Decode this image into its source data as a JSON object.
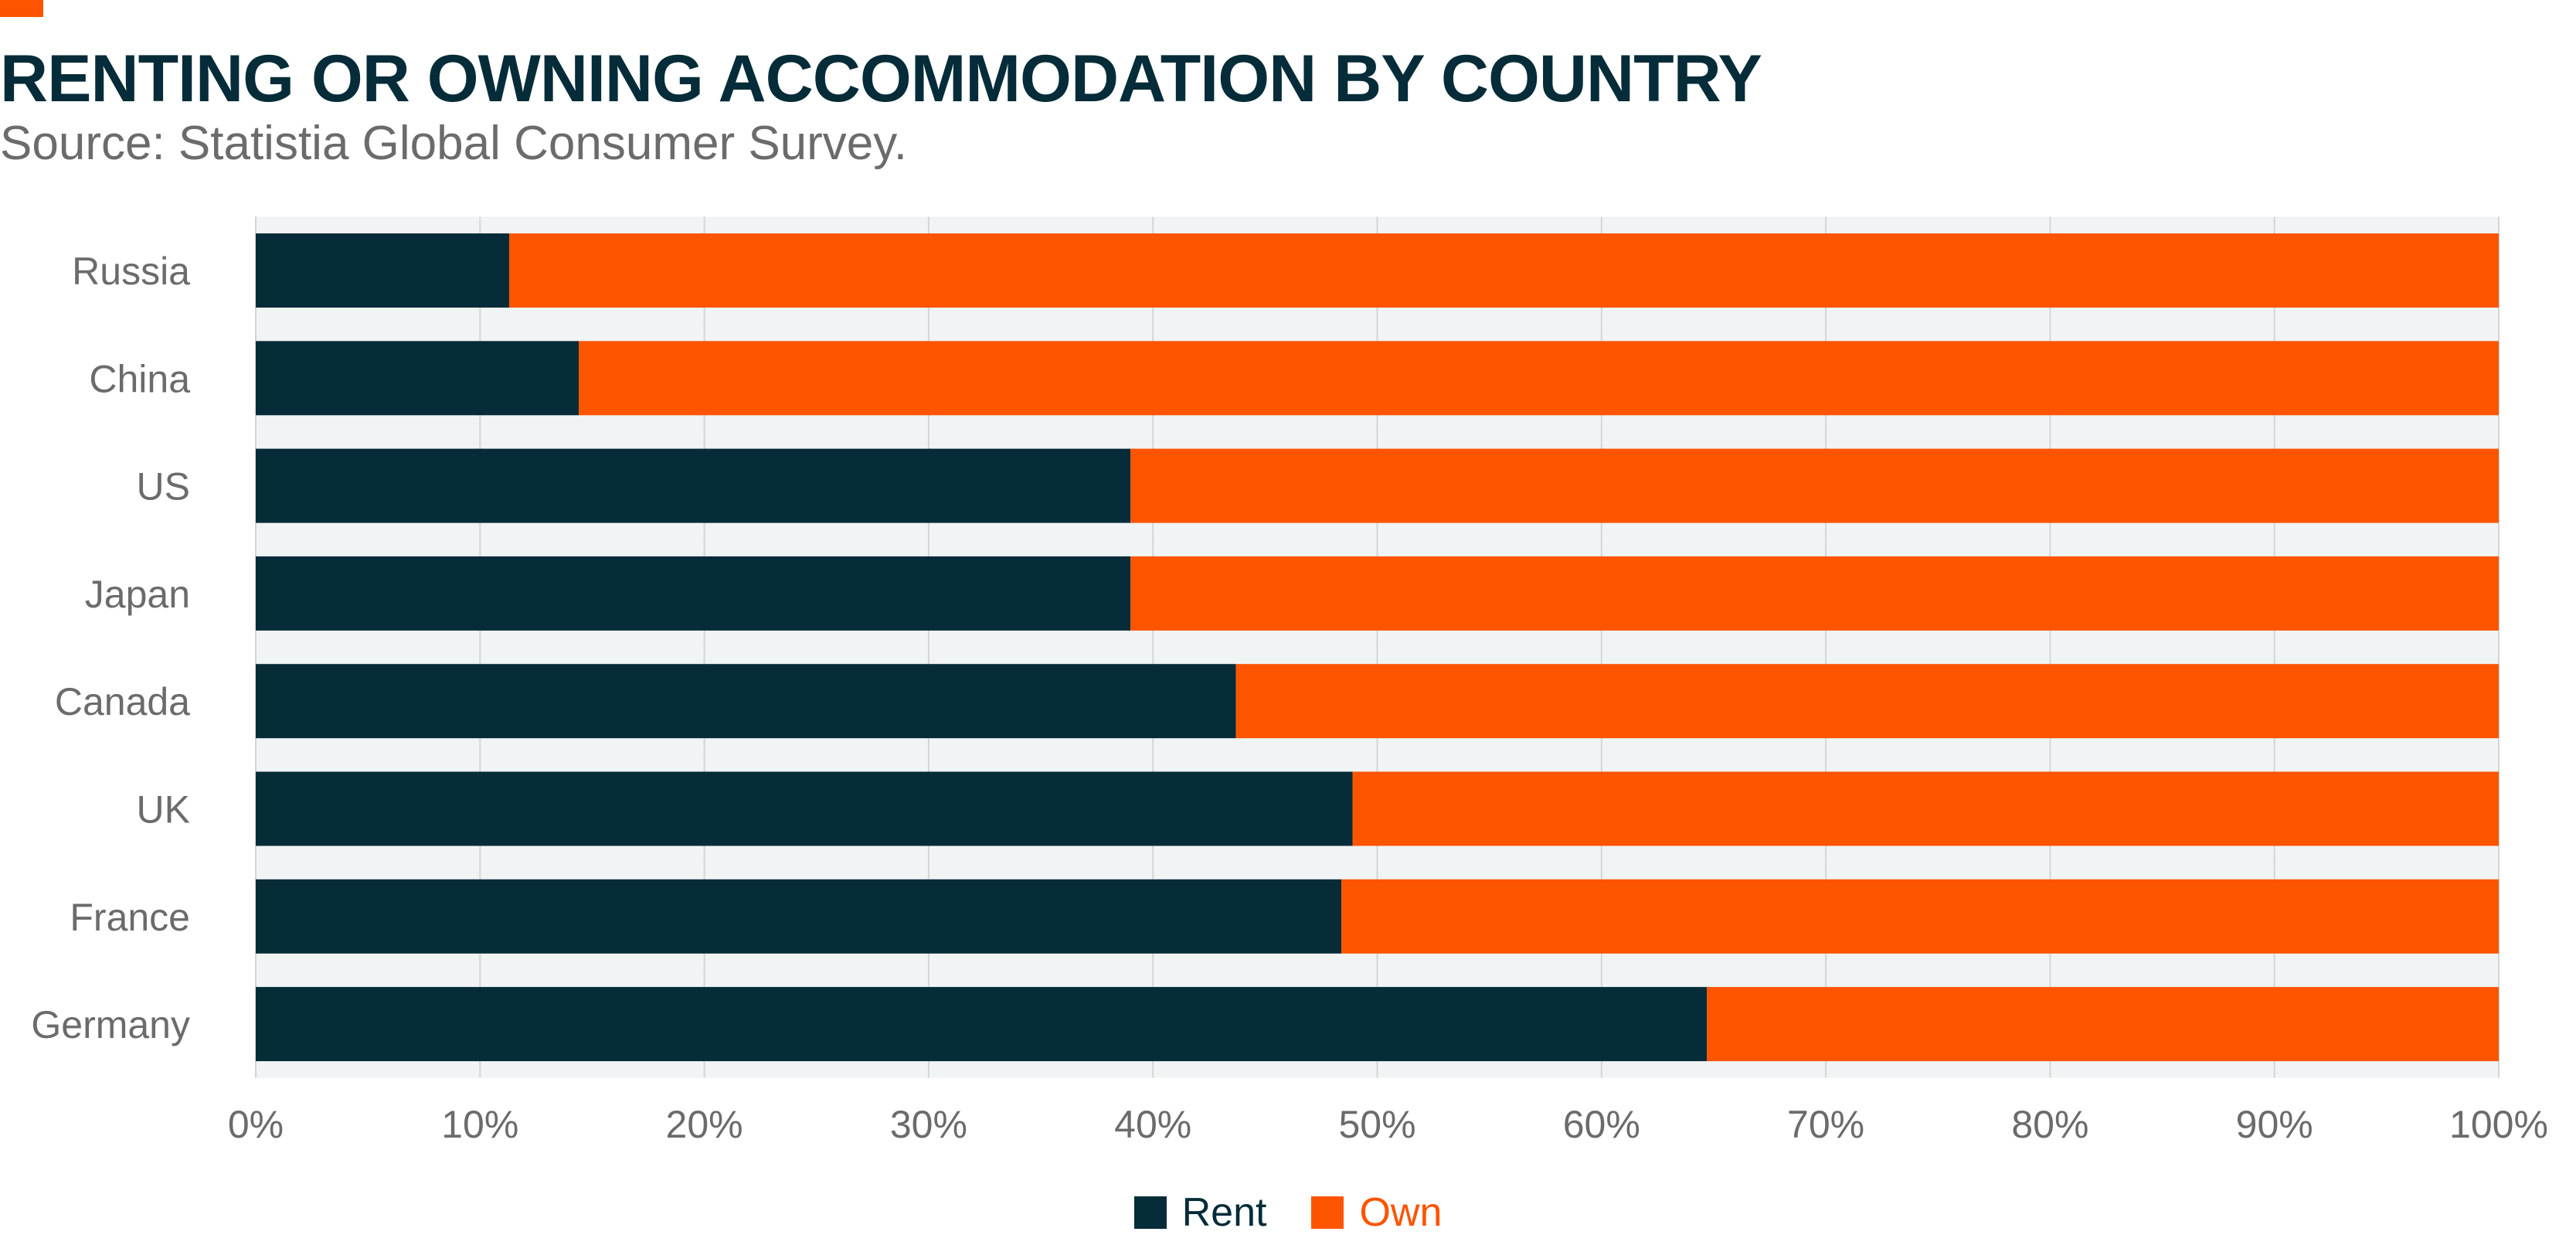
{
  "header": {
    "title": "RENTING OR OWNING ACCOMMODATION BY COUNTRY",
    "subtitle": "Source: Statistia Global Consumer Survey."
  },
  "colors": {
    "rent": "#052c38",
    "own": "#fd5400",
    "title": "#052c38",
    "subtitle": "#6b6b6b",
    "axis_text": "#6b6b6b",
    "band": "#f1f4f5",
    "grid": "#d5d5d5"
  },
  "legend": {
    "rent_label": "Rent",
    "own_label": "Own"
  },
  "chart_data": {
    "type": "bar",
    "orientation": "horizontal",
    "stacked": true,
    "categories": [
      "Russia",
      "China",
      "US",
      "Japan",
      "Canada",
      "UK",
      "France",
      "Germany"
    ],
    "series": [
      {
        "name": "Rent",
        "values": [
          11.3,
          14.4,
          39.0,
          39.0,
          43.7,
          48.9,
          48.4,
          64.7
        ]
      },
      {
        "name": "Own",
        "values": [
          88.7,
          85.6,
          61.0,
          61.0,
          56.3,
          51.1,
          51.6,
          35.3
        ]
      }
    ],
    "xlim": [
      0,
      100
    ],
    "xticks": [
      "0%",
      "10%",
      "20%",
      "30%",
      "40%",
      "50%",
      "60%",
      "70%",
      "80%",
      "90%",
      "100%"
    ],
    "grid": true,
    "legend_position": "bottom-center"
  }
}
